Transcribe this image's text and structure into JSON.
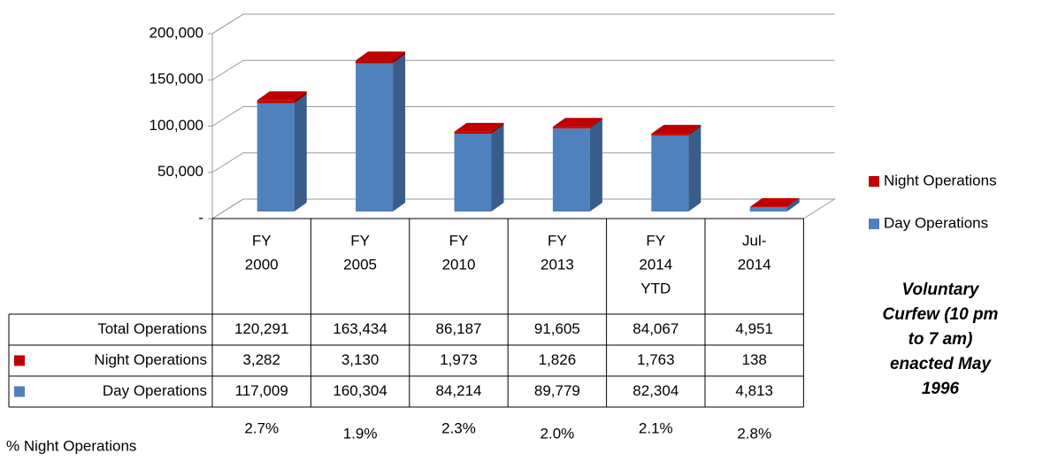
{
  "chart_data": {
    "type": "bar",
    "stacked": true,
    "categories": [
      [
        "FY",
        "2000"
      ],
      [
        "FY",
        "2005"
      ],
      [
        "FY",
        "2010"
      ],
      [
        "FY",
        "2013"
      ],
      [
        "FY",
        "2014",
        "YTD"
      ],
      [
        "Jul-",
        "2014"
      ]
    ],
    "series": [
      {
        "name": "Day Operations",
        "color": "#4f81bd",
        "side_color": "#385d8a",
        "values": [
          117009,
          160304,
          84214,
          89779,
          82304,
          4813
        ],
        "value_labels": [
          "117,009",
          "160,304",
          "84,214",
          "89,779",
          "82,304",
          "4,813"
        ]
      },
      {
        "name": "Night Operations",
        "color": "#c00000",
        "side_color": "#7f0000",
        "values": [
          3282,
          3130,
          1973,
          1826,
          1763,
          138
        ],
        "value_labels": [
          "3,282",
          "3,130",
          "1,973",
          "1,826",
          "1,763",
          "138"
        ]
      }
    ],
    "totals": {
      "name": "Total Operations",
      "values": [
        120291,
        163434,
        86187,
        91605,
        84067,
        4951
      ],
      "value_labels": [
        "120,291",
        "163,434",
        "86,187",
        "91,605",
        "84,067",
        "4,951"
      ]
    },
    "night_share": {
      "name": "% Night Operations",
      "values": [
        2.7,
        1.9,
        2.3,
        2.0,
        2.1,
        2.8
      ],
      "value_labels": [
        "2.7%",
        "1.9%",
        "2.3%",
        "2.0%",
        "2.1%",
        "2.8%"
      ]
    },
    "ylim": [
      0,
      200000
    ],
    "yticks": [
      {
        "value": 0,
        "label": "-"
      },
      {
        "value": 50000,
        "label": "50,000"
      },
      {
        "value": 100000,
        "label": "100,000"
      },
      {
        "value": 150000,
        "label": "150,000"
      },
      {
        "value": 200000,
        "label": "200,000"
      }
    ],
    "grid": true,
    "legend": "right",
    "annotation": [
      "Voluntary",
      "Curfew (10 pm",
      "to 7 am)",
      "enacted May",
      "1996"
    ]
  }
}
